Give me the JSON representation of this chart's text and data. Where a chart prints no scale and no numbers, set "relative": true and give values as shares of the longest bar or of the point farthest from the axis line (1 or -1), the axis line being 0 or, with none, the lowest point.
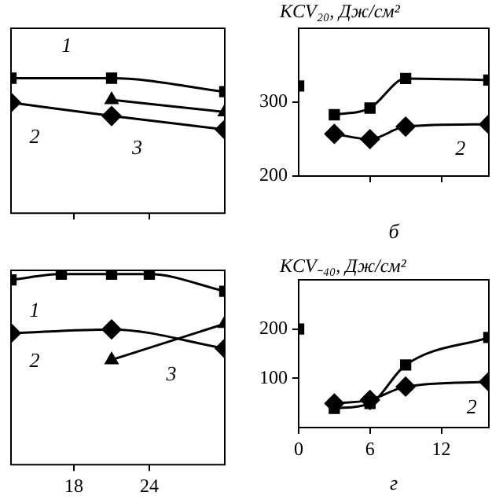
{
  "chart_data": [
    {
      "type": "line",
      "relative": true,
      "xlim": [
        13,
        30
      ],
      "xticks": [
        {
          "value": 18,
          "label": null
        },
        {
          "value": 24,
          "label": null
        }
      ],
      "tick_labels": false,
      "series": [
        {
          "color": "#000000",
          "marker": "square",
          "x": [
            13,
            21,
            30
          ],
          "values": [
            1,
            1,
            0.9
          ]
        },
        {
          "color": "#000000",
          "marker": "diamond",
          "x": [
            13,
            21,
            30
          ],
          "values": [
            0.82,
            0.72,
            0.62
          ]
        },
        {
          "color": "#000000",
          "marker": "triangle",
          "x": [
            21,
            30
          ],
          "values": [
            0.84,
            0.75
          ]
        }
      ],
      "annotations": [
        "1",
        "2",
        "3"
      ]
    },
    {
      "type": "line",
      "ylabel": "KCV₂₀, Дж/см²",
      "xlabel": "б",
      "xlim": [
        0,
        16
      ],
      "xticks": [
        {
          "value": 6,
          "label": null
        },
        {
          "value": 12,
          "label": null
        }
      ],
      "ylim": [
        200,
        400
      ],
      "yticks": [
        200,
        300
      ],
      "tick_labels": "y",
      "series": [
        {
          "type": "scatter",
          "color": "#000000",
          "marker": "square",
          "x": [
            0
          ],
          "values": [
            322
          ]
        },
        {
          "color": "#000000",
          "marker": "square",
          "x": [
            3,
            6,
            9,
            16
          ],
          "values": [
            283,
            292,
            332,
            330
          ]
        },
        {
          "color": "#000000",
          "marker": "diamond",
          "x": [
            3,
            6,
            9,
            16
          ],
          "values": [
            257,
            250,
            267,
            270
          ]
        }
      ],
      "annotations": [
        "2"
      ]
    },
    {
      "type": "line",
      "relative": true,
      "xlim": [
        13,
        30
      ],
      "xticks": [
        18,
        24
      ],
      "tick_labels": "x",
      "series": [
        {
          "color": "#000000",
          "marker": "square",
          "x": [
            13,
            17,
            21,
            24,
            30
          ],
          "values": [
            0.97,
            1,
            1,
            1,
            0.91
          ]
        },
        {
          "color": "#000000",
          "marker": "diamond",
          "x": [
            13,
            21,
            30
          ],
          "values": [
            0.69,
            0.71,
            0.61
          ]
        },
        {
          "color": "#000000",
          "marker": "triangle",
          "x": [
            21,
            30
          ],
          "values": [
            0.55,
            0.74
          ]
        }
      ],
      "annotations": [
        "1",
        "2",
        "3"
      ]
    },
    {
      "type": "line",
      "ylabel": "KCV₋₄₀, Дж/см²",
      "xlabel": "г",
      "xlim": [
        0,
        16
      ],
      "xticks": [
        0,
        6,
        12
      ],
      "ylim": [
        0,
        300
      ],
      "yticks": [
        100,
        200
      ],
      "series": [
        {
          "type": "scatter",
          "color": "#000000",
          "marker": "square",
          "x": [
            0
          ],
          "values": [
            200
          ]
        },
        {
          "color": "#000000",
          "marker": "square",
          "x": [
            3,
            6,
            9,
            16
          ],
          "values": [
            39,
            49,
            127,
            183
          ]
        },
        {
          "color": "#000000",
          "marker": "diamond",
          "x": [
            3,
            6,
            9,
            16
          ],
          "values": [
            49,
            56,
            83,
            93
          ]
        }
      ],
      "annotations": [
        "2"
      ]
    }
  ]
}
